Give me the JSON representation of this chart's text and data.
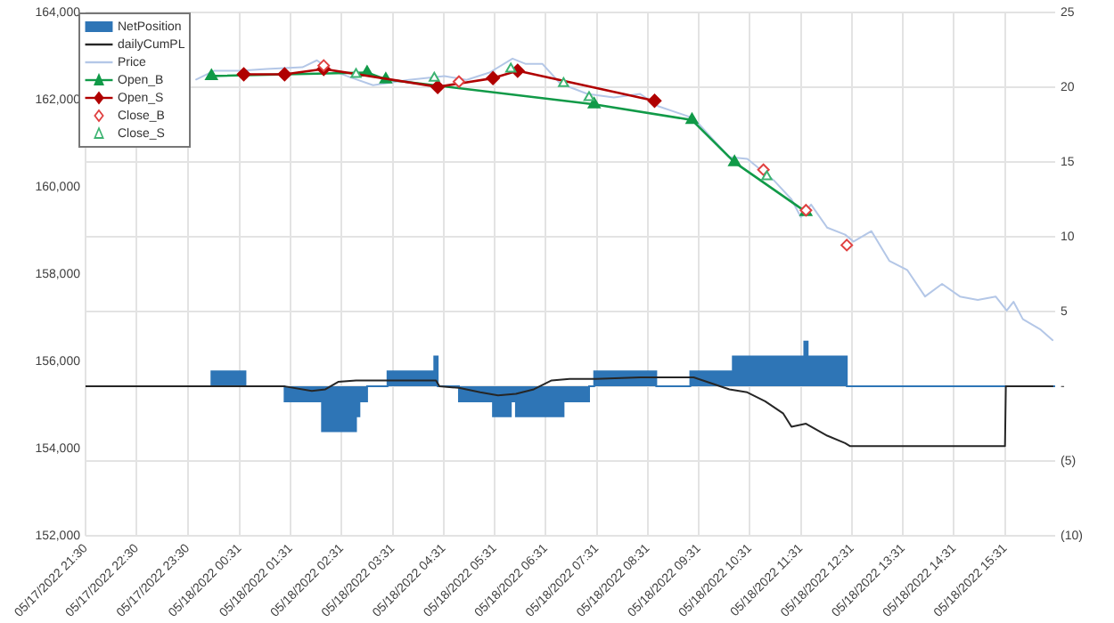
{
  "chart_data": {
    "type": "line",
    "xlim": [
      "2022-05-17T21:30",
      "2022-05-18T16:30"
    ],
    "xticks": [
      {
        "value": "2022-05-17T21:30",
        "label": "05/17/2022 21:30"
      },
      {
        "value": "2022-05-17T22:30",
        "label": "05/17/2022 22:30"
      },
      {
        "value": "2022-05-17T23:30",
        "label": "05/17/2022 23:30"
      },
      {
        "value": "2022-05-18T00:31",
        "label": "05/18/2022 00:31"
      },
      {
        "value": "2022-05-18T01:31",
        "label": "05/18/2022 01:31"
      },
      {
        "value": "2022-05-18T02:31",
        "label": "05/18/2022 02:31"
      },
      {
        "value": "2022-05-18T03:31",
        "label": "05/18/2022 03:31"
      },
      {
        "value": "2022-05-18T04:31",
        "label": "05/18/2022 04:31"
      },
      {
        "value": "2022-05-18T05:31",
        "label": "05/18/2022 05:31"
      },
      {
        "value": "2022-05-18T06:31",
        "label": "05/18/2022 06:31"
      },
      {
        "value": "2022-05-18T07:31",
        "label": "05/18/2022 07:31"
      },
      {
        "value": "2022-05-18T08:31",
        "label": "05/18/2022 08:31"
      },
      {
        "value": "2022-05-18T09:31",
        "label": "05/18/2022 09:31"
      },
      {
        "value": "2022-05-18T10:31",
        "label": "05/18/2022 10:31"
      },
      {
        "value": "2022-05-18T11:31",
        "label": "05/18/2022 11:31"
      },
      {
        "value": "2022-05-18T12:31",
        "label": "05/18/2022 12:31"
      },
      {
        "value": "2022-05-18T13:31",
        "label": "05/18/2022 13:31"
      },
      {
        "value": "2022-05-18T14:31",
        "label": "05/18/2022 14:31"
      },
      {
        "value": "2022-05-18T15:31",
        "label": "05/18/2022 15:31"
      }
    ],
    "ylim": [
      152000,
      164000
    ],
    "yticks": [
      {
        "value": 152000,
        "label": "152,000"
      },
      {
        "value": 154000,
        "label": "154,000"
      },
      {
        "value": 156000,
        "label": "156,000"
      },
      {
        "value": 158000,
        "label": "158,000"
      },
      {
        "value": 160000,
        "label": "160,000"
      },
      {
        "value": 162000,
        "label": "162,000"
      },
      {
        "value": 164000,
        "label": "164,000"
      }
    ],
    "y2lim": [
      -10,
      25
    ],
    "y2ticks": [
      {
        "value": -10,
        "label": "(10)"
      },
      {
        "value": -5,
        "label": "(5)"
      },
      {
        "value": 0,
        "label": "-"
      },
      5,
      10,
      15,
      20,
      25
    ],
    "grid": true,
    "legend": "top left",
    "series": [
      {
        "name": "NetPosition",
        "type": "step",
        "axis": "y2",
        "color": "#2e75b6",
        "x": [
          "2022-05-17T21:30",
          "2022-05-17T23:58",
          "2022-05-18T00:38",
          "2022-05-18T01:24",
          "2022-05-18T02:08",
          "2022-05-18T02:48",
          "2022-05-18T02:52",
          "2022-05-18T03:01",
          "2022-05-18T03:25",
          "2022-05-18T04:20",
          "2022-05-18T04:24",
          "2022-05-18T04:49",
          "2022-05-18T05:29",
          "2022-05-18T05:50",
          "2022-05-18T05:56",
          "2022-05-18T06:52",
          "2022-05-18T07:22",
          "2022-05-18T07:28",
          "2022-05-18T08:41",
          "2022-05-18T09:21",
          "2022-05-18T10:11",
          "2022-05-18T11:35",
          "2022-05-18T11:39",
          "2022-05-18T12:25",
          "2022-05-18T16:30"
        ],
        "values": [
          0,
          1,
          0,
          -1,
          -3,
          -2,
          -1,
          0,
          1,
          2,
          0,
          -1,
          -2,
          -1,
          -2,
          -1,
          0,
          1,
          0,
          1,
          2,
          3,
          2,
          0,
          0
        ]
      },
      {
        "name": "dailyCumPL",
        "axis": "y2",
        "color": "#262626",
        "marker": "none",
        "x": [
          "2022-05-17T21:30",
          "2022-05-18T01:24",
          "2022-05-18T01:56",
          "2022-05-18T02:12",
          "2022-05-18T02:27",
          "2022-05-18T02:48",
          "2022-05-18T03:19",
          "2022-05-18T04:22",
          "2022-05-18T04:26",
          "2022-05-18T04:49",
          "2022-05-18T05:14",
          "2022-05-18T05:35",
          "2022-05-18T05:56",
          "2022-05-18T06:17",
          "2022-05-18T06:38",
          "2022-05-18T06:59",
          "2022-05-18T07:30",
          "2022-05-18T08:22",
          "2022-05-18T09:25",
          "2022-05-18T09:46",
          "2022-05-18T10:07",
          "2022-05-18T10:28",
          "2022-05-18T10:49",
          "2022-05-18T11:10",
          "2022-05-18T11:20",
          "2022-05-18T11:37",
          "2022-05-18T12:02",
          "2022-05-18T12:23",
          "2022-05-18T12:29",
          "2022-05-18T15:31",
          "2022-05-18T15:32",
          "2022-05-18T16:27"
        ],
        "values": [
          0,
          0,
          -0.3,
          -0.2,
          0.3,
          0.4,
          0.4,
          0.4,
          0,
          -0.1,
          -0.4,
          -0.6,
          -0.5,
          -0.2,
          0.4,
          0.5,
          0.5,
          0.6,
          0.6,
          0.2,
          -0.2,
          -0.4,
          -1.0,
          -1.8,
          -2.7,
          -2.5,
          -3.3,
          -3.8,
          -4.0,
          -4.0,
          0,
          0
        ]
      },
      {
        "name": "Price",
        "color": "#b4c7e7",
        "marker": "none",
        "x": [
          "2022-05-17T23:40",
          "2022-05-18T00:01",
          "2022-05-18T00:32",
          "2022-05-18T01:03",
          "2022-05-18T01:45",
          "2022-05-18T02:02",
          "2022-05-18T02:16",
          "2022-05-18T02:37",
          "2022-05-18T03:08",
          "2022-05-18T03:50",
          "2022-05-18T04:32",
          "2022-05-18T04:58",
          "2022-05-18T05:25",
          "2022-05-18T05:52",
          "2022-05-18T06:07",
          "2022-05-18T06:27",
          "2022-05-18T06:48",
          "2022-05-18T07:20",
          "2022-05-18T07:51",
          "2022-05-18T08:22",
          "2022-05-18T08:43",
          "2022-05-18T09:25",
          "2022-05-18T09:46",
          "2022-05-18T10:07",
          "2022-05-18T10:28",
          "2022-05-18T10:59",
          "2022-05-18T11:20",
          "2022-05-18T11:31",
          "2022-05-18T11:43",
          "2022-05-18T12:02",
          "2022-05-18T12:23",
          "2022-05-18T12:33",
          "2022-05-18T12:54",
          "2022-05-18T13:15",
          "2022-05-18T13:36",
          "2022-05-18T13:57",
          "2022-05-18T14:17",
          "2022-05-18T14:38",
          "2022-05-18T14:59",
          "2022-05-18T15:20",
          "2022-05-18T15:33",
          "2022-05-18T15:41",
          "2022-05-18T15:52",
          "2022-05-18T16:13",
          "2022-05-18T16:27"
        ],
        "values": [
          162470,
          162670,
          162670,
          162710,
          162750,
          162910,
          162710,
          162550,
          162340,
          162460,
          162550,
          162460,
          162630,
          162950,
          162830,
          162830,
          162380,
          162140,
          162060,
          162140,
          161860,
          161580,
          161130,
          160690,
          160650,
          160160,
          159720,
          159310,
          159600,
          159070,
          158910,
          158750,
          158990,
          158310,
          158100,
          157490,
          157780,
          157490,
          157410,
          157490,
          157170,
          157370,
          156970,
          156730,
          156490
        ]
      },
      {
        "name": "Open_B",
        "color": "#119a48",
        "marker": "triangle",
        "x": [
          "2022-05-17T23:58",
          "2022-05-18T03:01",
          "2022-05-18T03:23",
          "2022-05-18T07:28",
          "2022-05-18T09:23",
          "2022-05-18T10:13",
          "2022-05-18T11:37"
        ],
        "values": [
          162550,
          162630,
          162470,
          161900,
          161540,
          160570,
          159430
        ]
      },
      {
        "name": "Open_S",
        "color": "#b00000",
        "marker": "diamond",
        "x": [
          "2022-05-18T00:36",
          "2022-05-18T01:24",
          "2022-05-18T02:10",
          "2022-05-18T04:24",
          "2022-05-18T05:29",
          "2022-05-18T05:58",
          "2022-05-18T08:39"
        ],
        "values": [
          162590,
          162590,
          162710,
          162300,
          162500,
          162670,
          161980
        ]
      },
      {
        "name": "Close_B",
        "type": "scatter",
        "color": "#e04040",
        "marker": "diamond",
        "x": [
          "2022-05-18T02:10",
          "2022-05-18T04:49",
          "2022-05-18T10:47",
          "2022-05-18T11:37",
          "2022-05-18T12:25"
        ],
        "values": [
          162790,
          162420,
          160400,
          159470,
          158670
        ]
      },
      {
        "name": "Close_S",
        "type": "scatter",
        "color": "#3cb371",
        "marker": "triangle",
        "x": [
          "2022-05-18T02:48",
          "2022-05-18T04:20",
          "2022-05-18T05:50",
          "2022-05-18T06:52",
          "2022-05-18T07:22",
          "2022-05-18T10:51"
        ],
        "values": [
          162590,
          162500,
          162710,
          162380,
          162060,
          160240
        ]
      }
    ]
  }
}
